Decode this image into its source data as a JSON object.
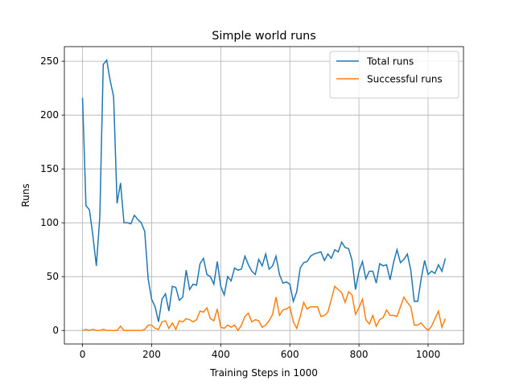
{
  "chart_data": {
    "type": "line",
    "title": "Simple world runs",
    "x_label": "Training Steps in 1000",
    "y_label": "Runs",
    "x": [
      0,
      10,
      20,
      30,
      40,
      50,
      60,
      70,
      80,
      90,
      100,
      110,
      120,
      130,
      140,
      150,
      160,
      170,
      180,
      190,
      200,
      210,
      220,
      230,
      240,
      250,
      260,
      270,
      280,
      290,
      300,
      310,
      320,
      330,
      340,
      350,
      360,
      370,
      380,
      390,
      400,
      410,
      420,
      430,
      440,
      450,
      460,
      470,
      480,
      490,
      500,
      510,
      520,
      530,
      540,
      550,
      560,
      570,
      580,
      590,
      600,
      610,
      620,
      630,
      640,
      650,
      660,
      670,
      680,
      690,
      700,
      710,
      720,
      730,
      740,
      750,
      760,
      770,
      780,
      790,
      800,
      810,
      820,
      830,
      840,
      850,
      860,
      870,
      880,
      890,
      900,
      910,
      920,
      930,
      940,
      950,
      960,
      970,
      980,
      990,
      1000,
      1010,
      1020,
      1030,
      1040,
      1050
    ],
    "series": [
      {
        "name": "Total runs",
        "color": "#1f77b4",
        "values": [
          216,
          116,
          112,
          88,
          60,
          105,
          247,
          251,
          232,
          217,
          118,
          137,
          100,
          100,
          99,
          107,
          103,
          100,
          92,
          48,
          29,
          22,
          8,
          29,
          34,
          18,
          41,
          40,
          28,
          31,
          56,
          38,
          43,
          42,
          62,
          67,
          52,
          50,
          43,
          64,
          41,
          33,
          50,
          46,
          58,
          56,
          57,
          69,
          61,
          55,
          52,
          66,
          60,
          71,
          57,
          60,
          69,
          52,
          44,
          45,
          43,
          27,
          36,
          58,
          63,
          64,
          69,
          71,
          72,
          73,
          65,
          71,
          67,
          75,
          73,
          82,
          77,
          76,
          65,
          38,
          55,
          64,
          48,
          55,
          55,
          44,
          62,
          60,
          61,
          47,
          63,
          75,
          63,
          66,
          71,
          56,
          27,
          27,
          48,
          65,
          52,
          55,
          53,
          61,
          55,
          67
        ]
      },
      {
        "name": "Successful runs",
        "color": "#ff7f0e",
        "values": [
          0,
          1,
          0,
          1,
          0,
          0,
          1,
          0,
          0,
          0,
          0,
          4,
          0,
          0,
          0,
          0,
          0,
          0,
          1,
          5,
          5,
          2,
          1,
          8,
          9,
          2,
          7,
          1,
          9,
          8,
          11,
          10,
          8,
          10,
          18,
          17,
          21,
          11,
          9,
          20,
          3,
          2,
          5,
          3,
          5,
          0,
          5,
          13,
          16,
          8,
          10,
          9,
          3,
          5,
          9,
          15,
          31,
          14,
          19,
          20,
          22,
          8,
          2,
          13,
          26,
          20,
          22,
          22,
          22,
          13,
          14,
          17,
          29,
          41,
          38,
          35,
          26,
          36,
          33,
          15,
          21,
          29,
          10,
          6,
          14,
          4,
          10,
          12,
          19,
          14,
          14,
          13,
          22,
          31,
          26,
          22,
          5,
          5,
          7,
          3,
          0,
          4,
          11,
          18,
          3,
          11
        ]
      }
    ],
    "xlim": [
      -52.5,
      1102.5
    ],
    "ylim": [
      -12.55,
      263.55
    ],
    "xticks": [
      0,
      200,
      400,
      600,
      800,
      1000
    ],
    "yticks": [
      0,
      50,
      100,
      150,
      200,
      250
    ],
    "grid": true,
    "legend": "upper right"
  }
}
